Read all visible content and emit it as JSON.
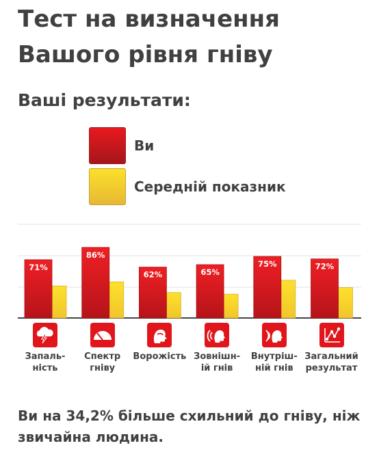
{
  "page": {
    "title": "Тест на визначення Вашого рівня гніву",
    "subtitle": "Ваші результати:",
    "footer": "Ви на 34,2% більше схильний до гніву, ніж звичайна людина."
  },
  "legend": [
    {
      "label": "Ви",
      "color": "#d9191e"
    },
    {
      "label": "Середній показник",
      "color": "#f6d22d"
    }
  ],
  "chart_data": {
    "type": "bar",
    "categories": [
      "Запаль-\nність",
      "Спектр\nгніву",
      "Ворожість",
      "Зовнішн-\nій гнів",
      "Внутріш-\nній гнів",
      "Загальний\nрезультат"
    ],
    "icons": [
      "cloud-lightning-icon",
      "anger-gauge-icon",
      "hostile-face-icon",
      "outward-sound-icon",
      "inward-sound-icon",
      "result-graph-icon"
    ],
    "series": [
      {
        "name": "Ви",
        "values": [
          71,
          86,
          62,
          65,
          75,
          72
        ],
        "labels": [
          "71%",
          "86%",
          "62%",
          "65%",
          "75%",
          "72%"
        ],
        "color": "#d9191e"
      },
      {
        "name": "Середній показник",
        "values": [
          39,
          44,
          31,
          29,
          46,
          37
        ],
        "color": "#f6d22d"
      }
    ],
    "ylim": [
      0,
      100
    ],
    "grid": true,
    "legend_position": "top"
  }
}
